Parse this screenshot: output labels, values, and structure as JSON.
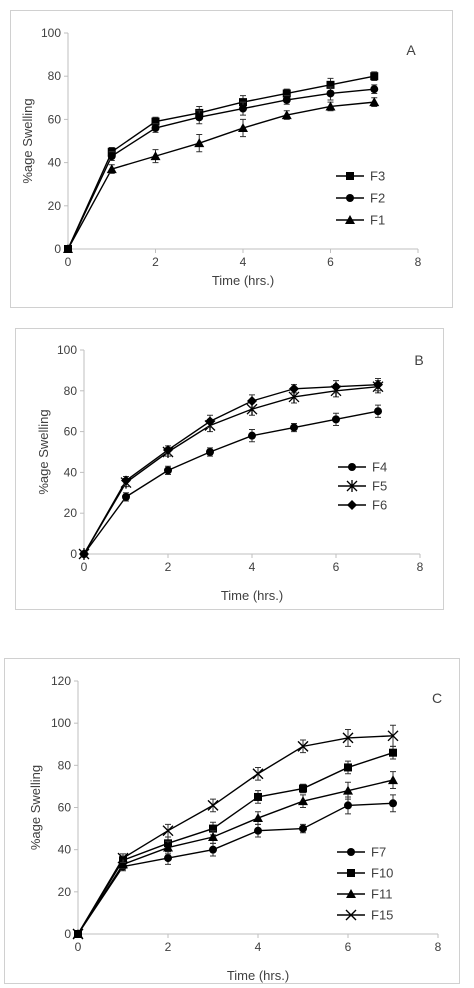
{
  "chart_data": [
    {
      "type": "line",
      "panel_label": "A",
      "xlabel": "Time (hrs.)",
      "ylabel": "%age Swelling",
      "xlim": [
        0,
        8
      ],
      "ylim": [
        0,
        100
      ],
      "xticks": [
        0,
        2,
        4,
        6,
        8
      ],
      "yticks": [
        0,
        20,
        40,
        60,
        80,
        100
      ],
      "grid": false,
      "legend_position": "right",
      "x": [
        0,
        1,
        2,
        3,
        4,
        5,
        6,
        7
      ],
      "series": [
        {
          "name": "F3",
          "marker": "square",
          "values": [
            0,
            45,
            59,
            63,
            68,
            72,
            76,
            80
          ],
          "errors": [
            0,
            2,
            2,
            3,
            3,
            2,
            3,
            2
          ]
        },
        {
          "name": "F2",
          "marker": "circle",
          "values": [
            0,
            43,
            56,
            61,
            65,
            69,
            72,
            74
          ],
          "errors": [
            0,
            2,
            2,
            3,
            3,
            2,
            3,
            2
          ]
        },
        {
          "name": "F1",
          "marker": "triangle",
          "values": [
            0,
            37,
            43,
            49,
            56,
            62,
            66,
            68
          ],
          "errors": [
            0,
            2,
            3,
            4,
            4,
            2,
            2,
            2
          ]
        }
      ]
    },
    {
      "type": "line",
      "panel_label": "B",
      "xlabel": "Time (hrs.)",
      "ylabel": "%age Swelling",
      "xlim": [
        0,
        8
      ],
      "ylim": [
        0,
        100
      ],
      "xticks": [
        0,
        2,
        4,
        6,
        8
      ],
      "yticks": [
        0,
        20,
        40,
        60,
        80,
        100
      ],
      "grid": false,
      "legend_position": "right",
      "x": [
        0,
        1,
        2,
        3,
        4,
        5,
        6,
        7
      ],
      "series": [
        {
          "name": "F4",
          "marker": "circle",
          "values": [
            0,
            28,
            41,
            50,
            58,
            62,
            66,
            70
          ],
          "errors": [
            0,
            2,
            2,
            2,
            3,
            2,
            3,
            3
          ]
        },
        {
          "name": "F5",
          "marker": "star",
          "values": [
            0,
            35,
            50,
            63,
            71,
            77,
            80,
            82
          ],
          "errors": [
            0,
            2,
            2,
            3,
            3,
            3,
            3,
            3
          ]
        },
        {
          "name": "F6",
          "marker": "diamond",
          "values": [
            0,
            36,
            51,
            65,
            75,
            81,
            82,
            83
          ],
          "errors": [
            0,
            2,
            2,
            3,
            3,
            2,
            3,
            3
          ]
        }
      ]
    },
    {
      "type": "line",
      "panel_label": "C",
      "xlabel": "Time (hrs.)",
      "ylabel": "%age Swelling",
      "xlim": [
        0,
        8
      ],
      "ylim": [
        0,
        120
      ],
      "xticks": [
        0,
        2,
        4,
        6,
        8
      ],
      "yticks": [
        0,
        20,
        40,
        60,
        80,
        100,
        120
      ],
      "grid": false,
      "legend_position": "right",
      "x": [
        0,
        1,
        2,
        3,
        4,
        5,
        6,
        7
      ],
      "series": [
        {
          "name": "F7",
          "marker": "circle",
          "values": [
            0,
            32,
            36,
            40,
            49,
            50,
            61,
            62
          ],
          "errors": [
            0,
            2,
            3,
            3,
            3,
            2,
            4,
            4
          ]
        },
        {
          "name": "F10",
          "marker": "square",
          "values": [
            0,
            35,
            43,
            50,
            65,
            69,
            79,
            86
          ],
          "errors": [
            0,
            2,
            3,
            3,
            3,
            2,
            3,
            3
          ]
        },
        {
          "name": "F11",
          "marker": "triangle",
          "values": [
            0,
            33,
            41,
            46,
            55,
            63,
            68,
            73
          ],
          "errors": [
            0,
            2,
            3,
            3,
            3,
            3,
            4,
            4
          ]
        },
        {
          "name": "F15",
          "marker": "x",
          "values": [
            0,
            36,
            49,
            61,
            76,
            89,
            93,
            94
          ],
          "errors": [
            0,
            2,
            3,
            3,
            3,
            3,
            4,
            5
          ]
        }
      ]
    }
  ]
}
